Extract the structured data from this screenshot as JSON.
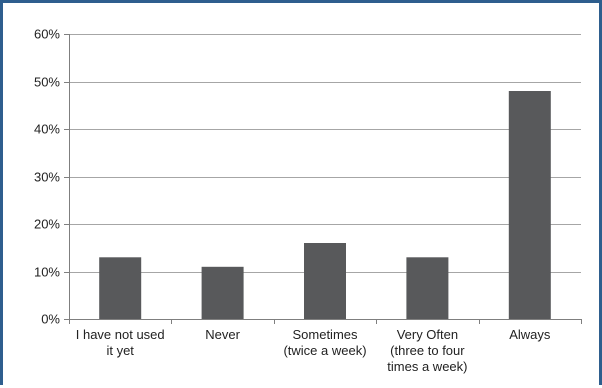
{
  "colors": {
    "bar": "#58595b",
    "grid": "#a6a6a6",
    "axis": "#7f7f7f",
    "frame": "#2e5e8e",
    "text": "#222222"
  },
  "chart_data": {
    "type": "bar",
    "title": "",
    "xlabel": "",
    "ylabel": "",
    "categories": [
      [
        "I have not used",
        "it yet"
      ],
      [
        "Never"
      ],
      [
        "Sometimes",
        "(twice a week)"
      ],
      [
        "Very Often",
        "(three to four",
        "times a week)"
      ],
      [
        "Always"
      ]
    ],
    "values": [
      13,
      11,
      16,
      13,
      48
    ],
    "ylim": [
      0,
      60
    ],
    "yticks": [
      0,
      10,
      20,
      30,
      40,
      50,
      60
    ],
    "ytick_labels": [
      "0%",
      "10%",
      "20%",
      "30%",
      "40%",
      "50%",
      "60%"
    ],
    "grid": true,
    "legend": "none"
  }
}
